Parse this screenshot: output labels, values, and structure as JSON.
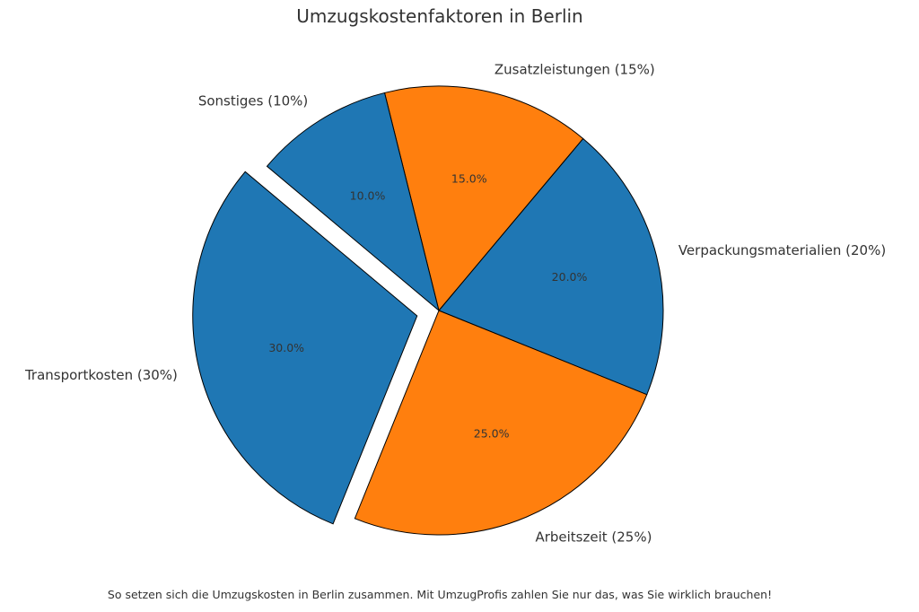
{
  "chart_data": {
    "type": "pie",
    "title": "Umzugskostenfaktoren in Berlin",
    "start_angle_deg": 140,
    "direction": "counterclockwise",
    "slices": [
      {
        "label": "Transportkosten (30%)",
        "value": 30,
        "pct_label": "30.0%",
        "color": "#1f77b4",
        "explode": 0.1
      },
      {
        "label": "Arbeitszeit (25%)",
        "value": 25,
        "pct_label": "25.0%",
        "color": "#ff7f0e",
        "explode": 0
      },
      {
        "label": "Verpackungsmaterialien (20%)",
        "value": 20,
        "pct_label": "20.0%",
        "color": "#1f77b4",
        "explode": 0
      },
      {
        "label": "Zusatzleistungen (15%)",
        "value": 15,
        "pct_label": "15.0%",
        "color": "#ff7f0e",
        "explode": 0
      },
      {
        "label": "Sonstiges (10%)",
        "value": 10,
        "pct_label": "10.0%",
        "color": "#1f77b4",
        "explode": 0
      }
    ]
  },
  "footer": "So setzen sich die Umzugskosten in Berlin zusammen. Mit UmzugProfis zahlen Sie nur das, was Sie wirklich brauchen!"
}
